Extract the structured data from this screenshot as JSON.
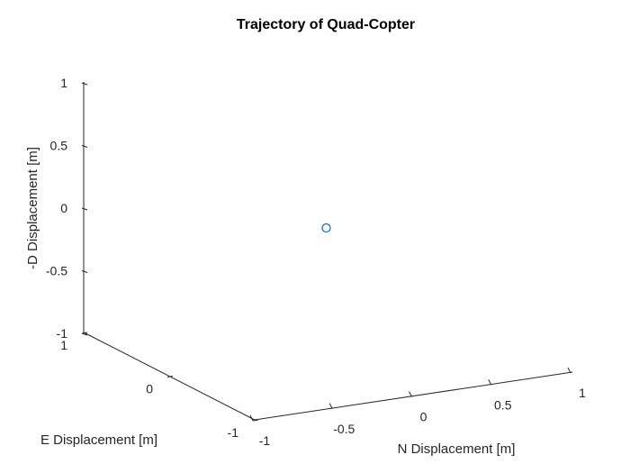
{
  "chart_data": {
    "type": "scatter",
    "title": "Trajectory of Quad-Copter",
    "xlabel": "N Displacement [m]",
    "ylabel": "E Displacement [m]",
    "zlabel": "-D Displacement [m]",
    "xlim": [
      -1,
      1
    ],
    "ylim": [
      -1,
      1
    ],
    "zlim": [
      -1,
      1
    ],
    "x_ticks": [
      "-1",
      "-0.5",
      "0",
      "0.5",
      "1"
    ],
    "y_ticks": [
      "-1",
      "0",
      "1"
    ],
    "z_ticks": [
      "-1",
      "-0.5",
      "0",
      "0.5",
      "1"
    ],
    "grid": false,
    "marker": "open-circle",
    "series": [
      {
        "x": [
          0
        ],
        "y": [
          0
        ],
        "z": [
          0
        ],
        "color": "#0072BD"
      }
    ]
  }
}
